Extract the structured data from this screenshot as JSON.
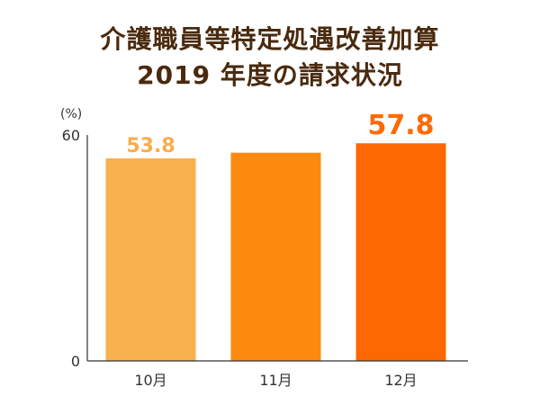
{
  "chart_data": {
    "type": "bar",
    "title": [
      "介護職員等特定処遇改善加算",
      "2019 年度の請求状況"
    ],
    "ylabel": "(%)",
    "xlabel": "",
    "ylim": [
      0,
      60
    ],
    "yticks": [
      "0",
      "60"
    ],
    "categories": [
      "10月",
      "11月",
      "12月"
    ],
    "values": [
      53.8,
      55.3,
      57.8
    ],
    "data_labels": [
      "53.8",
      "",
      "57.8"
    ],
    "colors": [
      "#f9b04e",
      "#fc8a0e",
      "#fd6803"
    ],
    "label_colors": [
      "#f9ad4a",
      "",
      "#fd6a04"
    ],
    "grid": false,
    "legend": "none"
  }
}
